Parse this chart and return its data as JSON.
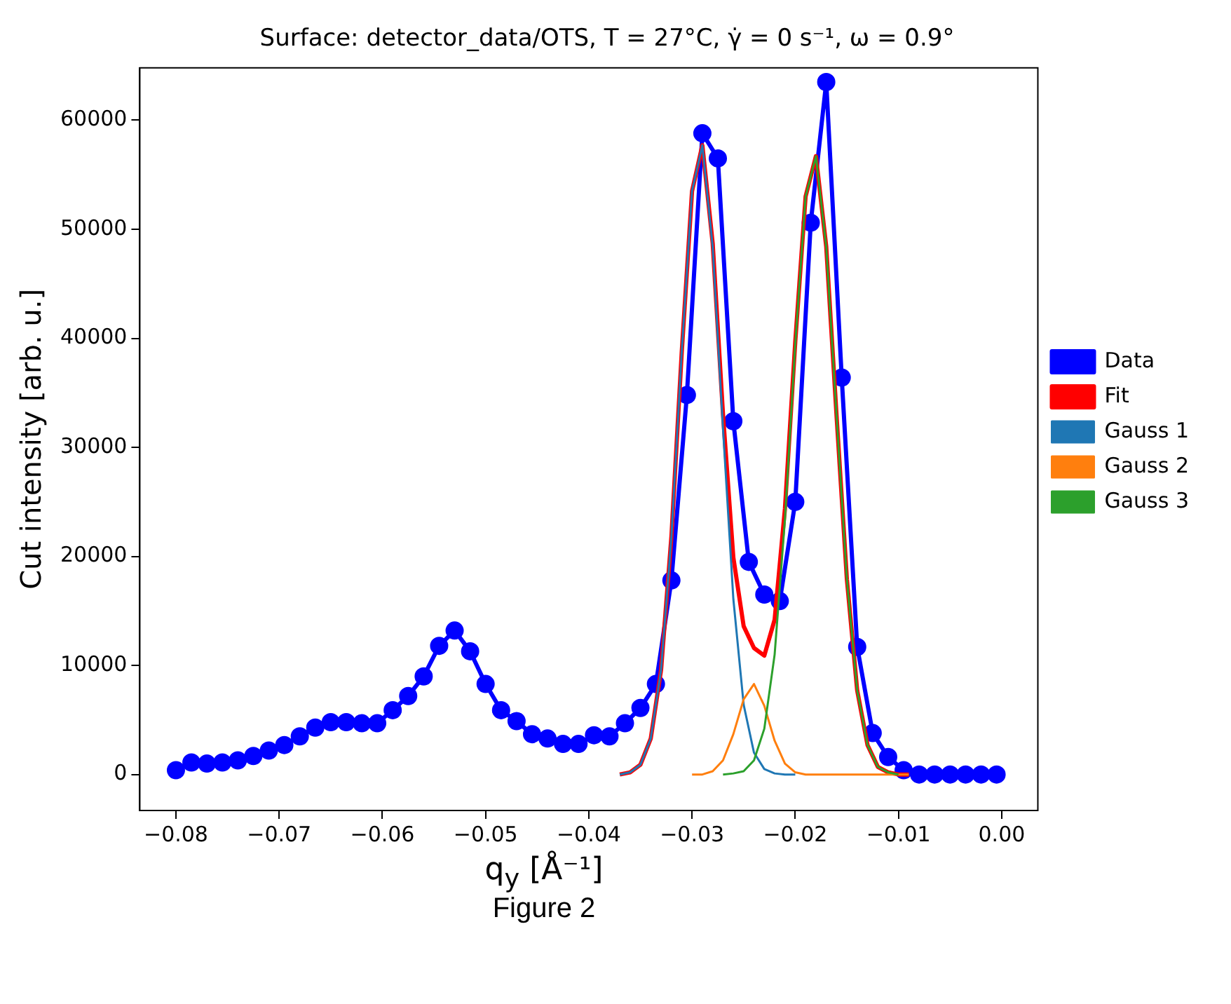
{
  "chart_data": {
    "type": "line",
    "title": "Surface: detector_data/OTS, T = 27°C, γ̇ = 0 s⁻¹, ω = 0.9°",
    "xlabel": "q$_{y}$ [Å⁻¹]",
    "ylabel": "Cut intensity [arb. u.]",
    "annotations": [
      "Figure 2"
    ],
    "xlim": [
      -0.0835,
      0.0035
    ],
    "ylim": [
      -3300,
      64800
    ],
    "xticks": [
      {
        "value": -0.08,
        "label": "−0.08"
      },
      {
        "value": -0.07,
        "label": "−0.07"
      },
      {
        "value": -0.06,
        "label": "−0.06"
      },
      {
        "value": -0.05,
        "label": "−0.05"
      },
      {
        "value": -0.04,
        "label": "−0.04"
      },
      {
        "value": -0.03,
        "label": "−0.03"
      },
      {
        "value": -0.02,
        "label": "−0.02"
      },
      {
        "value": -0.01,
        "label": "−0.01"
      },
      {
        "value": 0,
        "label": "0.00"
      }
    ],
    "yticks": [
      0,
      10000,
      20000,
      30000,
      40000,
      50000,
      60000
    ],
    "grid": false,
    "legend": "right",
    "line_style": "solid",
    "series": [
      {
        "name": "Data",
        "color": "#0000ff",
        "marker": "circle",
        "x": [
          -0.08,
          -0.0785,
          -0.077,
          -0.0755,
          -0.074,
          -0.0725,
          -0.071,
          -0.0695,
          -0.068,
          -0.0665,
          -0.065,
          -0.0635,
          -0.062,
          -0.0605,
          -0.059,
          -0.0575,
          -0.056,
          -0.0545,
          -0.053,
          -0.0515,
          -0.05,
          -0.0485,
          -0.047,
          -0.0455,
          -0.044,
          -0.0425,
          -0.041,
          -0.0395,
          -0.038,
          -0.0365,
          -0.035,
          -0.0335,
          -0.032,
          -0.0305,
          -0.029,
          -0.0275,
          -0.026,
          -0.0245,
          -0.023,
          -0.0215,
          -0.02,
          -0.0185,
          -0.017,
          -0.0155,
          -0.014,
          -0.0125,
          -0.011,
          -0.0095,
          -0.008,
          -0.0065,
          -0.005,
          -0.0035,
          -0.002,
          -0.0005
        ],
        "values": [
          400,
          1100,
          1000,
          1100,
          1300,
          1700,
          2200,
          2700,
          3500,
          4300,
          4800,
          4800,
          4700,
          4700,
          5900,
          7200,
          9000,
          11800,
          13200,
          11300,
          8300,
          5900,
          4900,
          3700,
          3300,
          2800,
          2800,
          3600,
          3500,
          4700,
          6100,
          8300,
          17800,
          34800,
          58800,
          56500,
          32400,
          19500,
          16500,
          15900,
          25000,
          50600,
          63500,
          36400,
          11700,
          3800,
          1600,
          400,
          0,
          0,
          0,
          0,
          0,
          0
        ]
      },
      {
        "name": "Fit",
        "color": "#ff0000",
        "marker": "none",
        "x": [
          -0.037,
          -0.036,
          -0.035,
          -0.034,
          -0.033,
          -0.032,
          -0.031,
          -0.03,
          -0.029,
          -0.028,
          -0.027,
          -0.026,
          -0.025,
          -0.024,
          -0.023,
          -0.022,
          -0.021,
          -0.02,
          -0.019,
          -0.018,
          -0.017,
          -0.016,
          -0.015,
          -0.014,
          -0.013,
          -0.012,
          -0.011,
          -0.01,
          -0.009
        ],
        "values": [
          0,
          200,
          900,
          3300,
          9600,
          21800,
          38700,
          53500,
          57700,
          48700,
          33000,
          19900,
          13600,
          11600,
          10900,
          14200,
          24400,
          39700,
          53000,
          56700,
          48400,
          32900,
          17900,
          7700,
          2700,
          700,
          200,
          0,
          0
        ]
      },
      {
        "name": "Gauss 1",
        "color": "#1f77b4",
        "marker": "none",
        "x": [
          -0.037,
          -0.036,
          -0.035,
          -0.034,
          -0.033,
          -0.032,
          -0.031,
          -0.03,
          -0.029,
          -0.028,
          -0.027,
          -0.026,
          -0.025,
          -0.024,
          -0.023,
          -0.022,
          -0.021,
          -0.02
        ],
        "values": [
          0,
          200,
          900,
          3300,
          9600,
          21800,
          38700,
          53500,
          57700,
          48400,
          31700,
          16100,
          6400,
          2000,
          500,
          100,
          0,
          0
        ]
      },
      {
        "name": "Gauss 2",
        "color": "#ff7f0e",
        "marker": "none",
        "x": [
          -0.03,
          -0.029,
          -0.028,
          -0.027,
          -0.026,
          -0.025,
          -0.024,
          -0.023,
          -0.022,
          -0.021,
          -0.02,
          -0.019,
          -0.018,
          -0.009
        ],
        "values": [
          0,
          0,
          300,
          1300,
          3700,
          6900,
          8300,
          6300,
          3100,
          1000,
          200,
          0,
          0,
          0
        ]
      },
      {
        "name": "Gauss 3",
        "color": "#2ca02c",
        "marker": "none",
        "x": [
          -0.027,
          -0.026,
          -0.025,
          -0.024,
          -0.023,
          -0.022,
          -0.021,
          -0.02,
          -0.019,
          -0.018,
          -0.017,
          -0.016,
          -0.015,
          -0.014,
          -0.013,
          -0.012,
          -0.011,
          -0.01
        ],
        "values": [
          0,
          100,
          300,
          1300,
          4200,
          11000,
          23400,
          39500,
          53000,
          56700,
          48400,
          32900,
          17900,
          7700,
          2700,
          700,
          200,
          0
        ]
      }
    ]
  }
}
